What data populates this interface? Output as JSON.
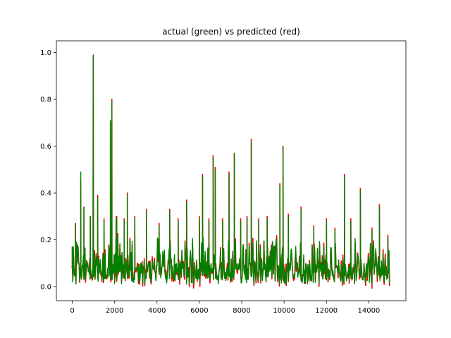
{
  "chart_data": {
    "type": "line",
    "title": "actual (green) vs predicted (red)",
    "xlabel": "",
    "ylabel": "",
    "xlim": [
      -750,
      15750
    ],
    "ylim": [
      -0.06,
      1.05
    ],
    "x_ticks": [
      0,
      2000,
      4000,
      6000,
      8000,
      10000,
      12000,
      14000
    ],
    "y_ticks": [
      0.0,
      0.2,
      0.4,
      0.6,
      0.8,
      1.0
    ],
    "grid": false,
    "n_points": 15000,
    "colors": {
      "actual": "#008000",
      "predicted": "#ff0000"
    },
    "series": [
      {
        "key": "predicted",
        "peaks": [
          [
            0,
            0.17
          ],
          [
            150,
            0.27
          ],
          [
            400,
            0.45
          ],
          [
            550,
            0.34
          ],
          [
            850,
            0.3
          ],
          [
            990,
            0.98
          ],
          [
            1200,
            0.39
          ],
          [
            1500,
            0.29
          ],
          [
            1800,
            0.7
          ],
          [
            1870,
            0.8
          ],
          [
            2100,
            0.3
          ],
          [
            2450,
            0.29
          ],
          [
            2600,
            0.4
          ],
          [
            2950,
            0.3
          ],
          [
            3500,
            0.33
          ],
          [
            4100,
            0.27
          ],
          [
            4600,
            0.33
          ],
          [
            5000,
            0.29
          ],
          [
            5400,
            0.37
          ],
          [
            6000,
            0.3
          ],
          [
            6150,
            0.48
          ],
          [
            6450,
            0.29
          ],
          [
            6650,
            0.56
          ],
          [
            6750,
            0.51
          ],
          [
            7100,
            0.29
          ],
          [
            7400,
            0.49
          ],
          [
            7650,
            0.57
          ],
          [
            7950,
            0.29
          ],
          [
            8250,
            0.3
          ],
          [
            8450,
            0.63
          ],
          [
            8800,
            0.29
          ],
          [
            9200,
            0.3
          ],
          [
            9800,
            0.44
          ],
          [
            9950,
            0.6
          ],
          [
            10200,
            0.31
          ],
          [
            10800,
            0.34
          ],
          [
            11400,
            0.26
          ],
          [
            12000,
            0.29
          ],
          [
            12400,
            0.25
          ],
          [
            12850,
            0.48
          ],
          [
            13150,
            0.29
          ],
          [
            13600,
            0.42
          ],
          [
            14150,
            0.25
          ],
          [
            14500,
            0.35
          ],
          [
            14900,
            0.22
          ]
        ]
      },
      {
        "key": "actual",
        "peaks": [
          [
            0,
            0.17
          ],
          [
            150,
            0.27
          ],
          [
            400,
            0.49
          ],
          [
            550,
            0.34
          ],
          [
            850,
            0.3
          ],
          [
            990,
            0.99
          ],
          [
            1200,
            0.38
          ],
          [
            1500,
            0.28
          ],
          [
            1800,
            0.71
          ],
          [
            1870,
            0.79
          ],
          [
            2100,
            0.29
          ],
          [
            2450,
            0.28
          ],
          [
            2600,
            0.39
          ],
          [
            2950,
            0.29
          ],
          [
            3500,
            0.32
          ],
          [
            4100,
            0.26
          ],
          [
            4600,
            0.32
          ],
          [
            5000,
            0.28
          ],
          [
            5400,
            0.36
          ],
          [
            6000,
            0.29
          ],
          [
            6150,
            0.47
          ],
          [
            6450,
            0.28
          ],
          [
            6650,
            0.55
          ],
          [
            6750,
            0.5
          ],
          [
            7100,
            0.28
          ],
          [
            7400,
            0.48
          ],
          [
            7650,
            0.57
          ],
          [
            7950,
            0.28
          ],
          [
            8250,
            0.29
          ],
          [
            8450,
            0.62
          ],
          [
            8800,
            0.28
          ],
          [
            9200,
            0.29
          ],
          [
            9800,
            0.43
          ],
          [
            9950,
            0.6
          ],
          [
            10200,
            0.3
          ],
          [
            10800,
            0.33
          ],
          [
            11400,
            0.25
          ],
          [
            12000,
            0.28
          ],
          [
            12400,
            0.24
          ],
          [
            12850,
            0.47
          ],
          [
            13150,
            0.28
          ],
          [
            13600,
            0.41
          ],
          [
            14150,
            0.24
          ],
          [
            14500,
            0.34
          ],
          [
            14900,
            0.21
          ]
        ]
      }
    ]
  }
}
